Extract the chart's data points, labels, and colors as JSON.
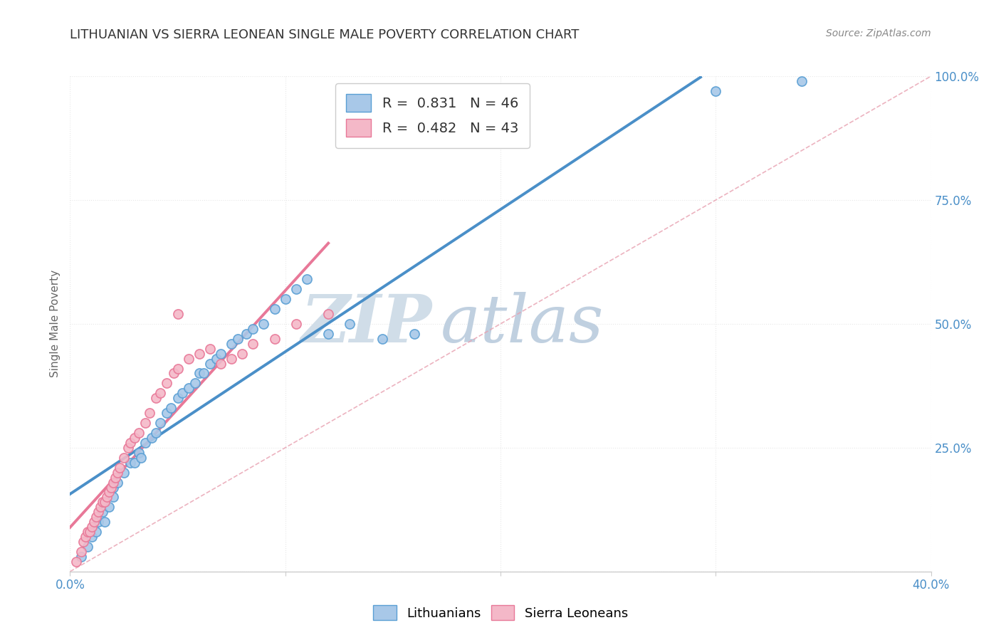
{
  "title": "LITHUANIAN VS SIERRA LEONEAN SINGLE MALE POVERTY CORRELATION CHART",
  "source": "Source: ZipAtlas.com",
  "ylabel": "Single Male Poverty",
  "xlim": [
    0.0,
    0.4
  ],
  "ylim": [
    0.0,
    1.0
  ],
  "xticks": [
    0.0,
    0.1,
    0.2,
    0.3,
    0.4
  ],
  "yticks": [
    0.0,
    0.25,
    0.5,
    0.75,
    1.0
  ],
  "xticklabels": [
    "0.0%",
    "",
    "",
    "",
    "40.0%"
  ],
  "yticklabels": [
    "",
    "25.0%",
    "50.0%",
    "75.0%",
    "100.0%"
  ],
  "blue_color": "#a8c8e8",
  "pink_color": "#f4b8c8",
  "blue_edge": "#5a9fd4",
  "pink_edge": "#e87898",
  "regression_blue": "#4a8fc8",
  "ref_line_color": "#e8a0b0",
  "R_blue": 0.831,
  "N_blue": 46,
  "R_pink": 0.482,
  "N_pink": 43,
  "watermark_zip": "ZIP",
  "watermark_atlas": "atlas",
  "legend_blue": "Lithuanians",
  "legend_pink": "Sierra Leoneans",
  "blue_points_x": [
    0.005,
    0.008,
    0.01,
    0.012,
    0.013,
    0.015,
    0.016,
    0.018,
    0.02,
    0.02,
    0.022,
    0.025,
    0.028,
    0.03,
    0.032,
    0.033,
    0.035,
    0.038,
    0.04,
    0.042,
    0.045,
    0.047,
    0.05,
    0.052,
    0.055,
    0.058,
    0.06,
    0.062,
    0.065,
    0.068,
    0.07,
    0.075,
    0.078,
    0.082,
    0.085,
    0.09,
    0.095,
    0.1,
    0.105,
    0.11,
    0.12,
    0.13,
    0.145,
    0.16,
    0.3,
    0.34
  ],
  "blue_points_y": [
    0.03,
    0.05,
    0.07,
    0.08,
    0.1,
    0.12,
    0.1,
    0.13,
    0.15,
    0.17,
    0.18,
    0.2,
    0.22,
    0.22,
    0.24,
    0.23,
    0.26,
    0.27,
    0.28,
    0.3,
    0.32,
    0.33,
    0.35,
    0.36,
    0.37,
    0.38,
    0.4,
    0.4,
    0.42,
    0.43,
    0.44,
    0.46,
    0.47,
    0.48,
    0.49,
    0.5,
    0.53,
    0.55,
    0.57,
    0.59,
    0.48,
    0.5,
    0.47,
    0.48,
    0.97,
    0.99
  ],
  "pink_points_x": [
    0.003,
    0.005,
    0.006,
    0.007,
    0.008,
    0.009,
    0.01,
    0.011,
    0.012,
    0.013,
    0.014,
    0.015,
    0.016,
    0.017,
    0.018,
    0.019,
    0.02,
    0.021,
    0.022,
    0.023,
    0.025,
    0.027,
    0.028,
    0.03,
    0.032,
    0.035,
    0.037,
    0.04,
    0.042,
    0.045,
    0.048,
    0.05,
    0.055,
    0.06,
    0.065,
    0.07,
    0.075,
    0.08,
    0.085,
    0.095,
    0.105,
    0.12,
    0.05
  ],
  "pink_points_y": [
    0.02,
    0.04,
    0.06,
    0.07,
    0.08,
    0.08,
    0.09,
    0.1,
    0.11,
    0.12,
    0.13,
    0.14,
    0.14,
    0.15,
    0.16,
    0.17,
    0.18,
    0.19,
    0.2,
    0.21,
    0.23,
    0.25,
    0.26,
    0.27,
    0.28,
    0.3,
    0.32,
    0.35,
    0.36,
    0.38,
    0.4,
    0.41,
    0.43,
    0.44,
    0.45,
    0.42,
    0.43,
    0.44,
    0.46,
    0.47,
    0.5,
    0.52,
    0.52
  ],
  "background_color": "#ffffff",
  "plot_bg_color": "#ffffff",
  "grid_color": "#e8e8e8",
  "title_color": "#333333",
  "axis_label_color": "#666666",
  "tick_label_color": "#4a8fc8",
  "source_color": "#888888",
  "watermark_color": "#dce8f4",
  "watermark_atlas_color": "#c8d8e8"
}
